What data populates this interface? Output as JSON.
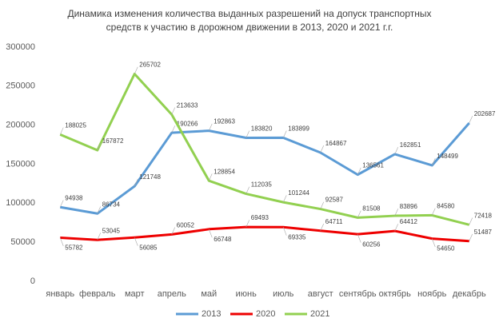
{
  "chart_data": {
    "type": "line",
    "title": [
      "Динамика изменения  количества выданных разрешений на допуск транспортных",
      "средств к участию в дорожном движении  в 2013, 2020 и 2021 г.г."
    ],
    "categories": [
      "январь",
      "февраль",
      "март",
      "апрель",
      "май",
      "июнь",
      "июль",
      "август",
      "сентябрь",
      "октябрь",
      "ноябрь",
      "декабрь"
    ],
    "series": [
      {
        "name": "2013",
        "color": "#5b9bd5",
        "values": [
          94938,
          86734,
          121748,
          190266,
          192863,
          183820,
          183899,
          164867,
          136561,
          162851,
          148499,
          202687
        ]
      },
      {
        "name": "2020",
        "color": "#ee0000",
        "values": [
          55782,
          53045,
          56085,
          60052,
          66748,
          69493,
          69335,
          64711,
          60256,
          64412,
          54650,
          51487
        ]
      },
      {
        "name": "2021",
        "color": "#92d050",
        "values": [
          188025,
          167872,
          265702,
          213633,
          128854,
          112035,
          101244,
          92587,
          81508,
          83896,
          84580,
          72418
        ]
      }
    ],
    "ylim": [
      0,
      300000
    ],
    "yticks": [
      0,
      50000,
      100000,
      150000,
      200000,
      250000,
      300000
    ],
    "grid": false,
    "legend": "bottom",
    "data_labels": true
  }
}
